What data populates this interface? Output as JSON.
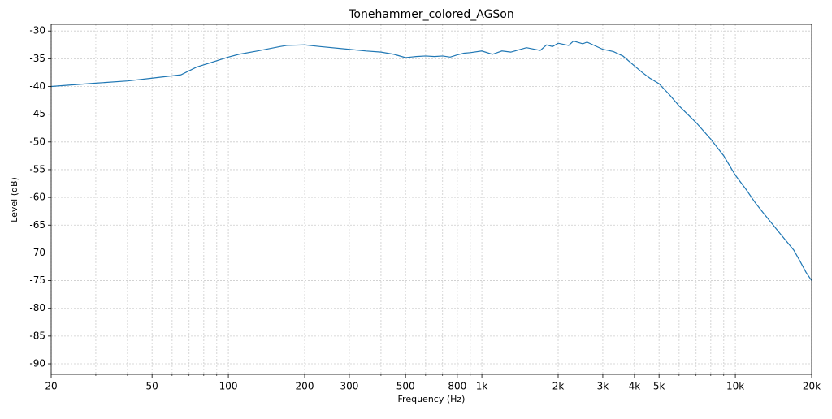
{
  "chart_data": {
    "type": "line",
    "title": "Tonehammer_colored_AGSon",
    "x_label": "Frequency (Hz)",
    "y_label": "Level (dB)",
    "x_scale": "log",
    "grid": true,
    "xlim": [
      20,
      20000
    ],
    "ylim": [
      -91.9,
      -28.8
    ],
    "xticks": [
      20,
      50,
      100,
      200,
      300,
      500,
      800,
      {
        "value": 1000,
        "label": "1k"
      },
      {
        "value": 2000,
        "label": "2k"
      },
      {
        "value": 3000,
        "label": "3k"
      },
      {
        "value": 4000,
        "label": "4k"
      },
      {
        "value": 5000,
        "label": "5k"
      },
      {
        "value": 10000,
        "label": "10k"
      },
      {
        "value": 20000,
        "label": "20k"
      }
    ],
    "xminorticks": [
      30,
      40,
      60,
      70,
      80,
      90,
      400,
      600,
      700,
      900,
      6000,
      7000,
      8000,
      9000
    ],
    "yticks": [
      -30,
      -35,
      -40,
      -45,
      -50,
      -55,
      -60,
      -65,
      -70,
      -75,
      -80,
      -85,
      -90
    ],
    "series": [
      {
        "name": "Tonehammer_colored_AGSon",
        "color": "#1f77b4",
        "x": [
          20,
          30,
          40,
          50,
          65,
          75,
          100,
          110,
          130,
          160,
          170,
          200,
          230,
          300,
          350,
          400,
          450,
          500,
          550,
          600,
          650,
          700,
          750,
          800,
          850,
          900,
          1000,
          1100,
          1200,
          1300,
          1500,
          1700,
          1800,
          1900,
          2000,
          2200,
          2300,
          2500,
          2600,
          3000,
          3300,
          3600,
          4000,
          4300,
          4600,
          5000,
          5500,
          6000,
          7000,
          8000,
          9000,
          10000,
          11000,
          12000,
          13000,
          15000,
          17000,
          18000,
          19000,
          20000
        ],
        "values": [
          -40,
          -39.4,
          -39,
          -38.5,
          -37.9,
          -36.5,
          -34.7,
          -34.2,
          -33.6,
          -32.8,
          -32.6,
          -32.5,
          -32.8,
          -33.3,
          -33.6,
          -33.8,
          -34.2,
          -34.8,
          -34.6,
          -34.5,
          -34.6,
          -34.5,
          -34.7,
          -34.3,
          -34.0,
          -33.9,
          -33.6,
          -34.2,
          -33.6,
          -33.8,
          -33.0,
          -33.5,
          -32.5,
          -32.8,
          -32.2,
          -32.6,
          -31.8,
          -32.3,
          -32.0,
          -33.3,
          -33.7,
          -34.5,
          -36.3,
          -37.5,
          -38.5,
          -39.5,
          -41.5,
          -43.5,
          -46.5,
          -49.5,
          -52.5,
          -56,
          -58.5,
          -61,
          -63,
          -66.5,
          -69.5,
          -71.5,
          -73.5,
          -75
        ]
      }
    ]
  }
}
